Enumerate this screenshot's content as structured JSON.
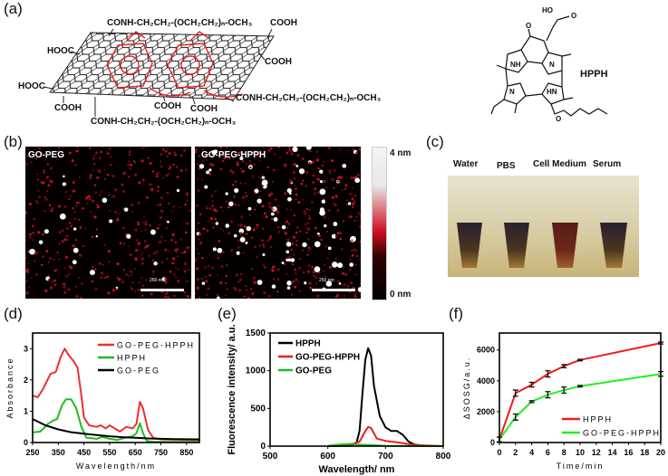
{
  "panel_labels": {
    "a": "(a)",
    "b": "(b)",
    "c": "(c)",
    "d": "(d)",
    "e": "(e)",
    "f": "(f)"
  },
  "panel_a": {
    "peg_chain": "CONH-CH₂CH₂-(OCH₂CH₂)ₙ-OCH₃",
    "cooh": "COOH",
    "hooc": "HOOC",
    "hpph_label": "HPPH",
    "structure_atoms": {
      "ho": "HO",
      "o": "O",
      "nh": "NH",
      "n": "N",
      "hn": "HN"
    }
  },
  "panel_b": {
    "left_title": "GO-PEG",
    "right_title": "GO-PEG-HPPH",
    "scale_bar": "250 nm",
    "colorbar_max": "4 nm",
    "colorbar_min": "0 nm"
  },
  "panel_c": {
    "tubes": [
      "Water",
      "PBS",
      "Cell Medium",
      "Serum"
    ]
  },
  "chart_data": [
    {
      "type": "line",
      "xlabel": "Wavelength/nm",
      "ylabel": "Absorbance",
      "xlim": [
        250,
        900
      ],
      "ylim": [
        0,
        3.5
      ],
      "xticks": [
        250,
        350,
        450,
        550,
        650,
        750,
        850
      ],
      "yticks": [
        0,
        1,
        2,
        3
      ],
      "legend": "top-right",
      "series": [
        {
          "name": "GO-PEG-HPPH",
          "color": "#ee3030",
          "points": [
            [
              250,
              1.5
            ],
            [
              270,
              1.45
            ],
            [
              290,
              1.7
            ],
            [
              320,
              2.2
            ],
            [
              340,
              2.25
            ],
            [
              360,
              2.75
            ],
            [
              375,
              3.0
            ],
            [
              390,
              2.8
            ],
            [
              410,
              2.6
            ],
            [
              425,
              2.4
            ],
            [
              440,
              1.5
            ],
            [
              450,
              0.8
            ],
            [
              470,
              0.55
            ],
            [
              500,
              0.5
            ],
            [
              515,
              0.55
            ],
            [
              535,
              0.45
            ],
            [
              550,
              0.55
            ],
            [
              570,
              0.45
            ],
            [
              590,
              0.35
            ],
            [
              615,
              0.5
            ],
            [
              640,
              0.45
            ],
            [
              655,
              0.6
            ],
            [
              668,
              1.3
            ],
            [
              680,
              1.1
            ],
            [
              700,
              0.4
            ],
            [
              720,
              0.15
            ],
            [
              750,
              0.1
            ],
            [
              900,
              0.08
            ]
          ]
        },
        {
          "name": "HPPH",
          "color": "#22bb22",
          "points": [
            [
              250,
              0.32
            ],
            [
              280,
              0.35
            ],
            [
              310,
              0.6
            ],
            [
              330,
              0.7
            ],
            [
              345,
              0.75
            ],
            [
              365,
              1.2
            ],
            [
              380,
              1.38
            ],
            [
              400,
              1.38
            ],
            [
              420,
              1.1
            ],
            [
              440,
              0.5
            ],
            [
              460,
              0.15
            ],
            [
              500,
              0.12
            ],
            [
              520,
              0.18
            ],
            [
              550,
              0.12
            ],
            [
              580,
              0.08
            ],
            [
              610,
              0.15
            ],
            [
              640,
              0.2
            ],
            [
              655,
              0.3
            ],
            [
              668,
              0.62
            ],
            [
              680,
              0.3
            ],
            [
              695,
              0.05
            ],
            [
              720,
              0.02
            ],
            [
              900,
              0.02
            ]
          ]
        },
        {
          "name": "GO-PEG",
          "color": "#000000",
          "points": [
            [
              250,
              0.75
            ],
            [
              300,
              0.55
            ],
            [
              350,
              0.42
            ],
            [
              400,
              0.33
            ],
            [
              450,
              0.28
            ],
            [
              500,
              0.24
            ],
            [
              550,
              0.2
            ],
            [
              600,
              0.17
            ],
            [
              650,
              0.15
            ],
            [
              700,
              0.13
            ],
            [
              800,
              0.11
            ],
            [
              900,
              0.1
            ]
          ]
        }
      ]
    },
    {
      "type": "line",
      "xlabel": "Wavelength/ nm",
      "ylabel": "Fluorescence intensity/ a.u.",
      "xlim": [
        500,
        800
      ],
      "ylim": [
        0,
        1500
      ],
      "xticks": [
        500,
        600,
        700,
        800
      ],
      "yticks": [
        0,
        500,
        1000,
        1500
      ],
      "legend": "top-left",
      "series": [
        {
          "name": "HPPH",
          "color": "#000000",
          "points": [
            [
              600,
              0
            ],
            [
              640,
              5
            ],
            [
              650,
              50
            ],
            [
              655,
              200
            ],
            [
              660,
              700
            ],
            [
              665,
              1150
            ],
            [
              670,
              1300
            ],
            [
              675,
              1200
            ],
            [
              680,
              800
            ],
            [
              690,
              400
            ],
            [
              700,
              250
            ],
            [
              710,
              200
            ],
            [
              720,
              200
            ],
            [
              730,
              150
            ],
            [
              740,
              60
            ],
            [
              750,
              20
            ],
            [
              770,
              3
            ],
            [
              800,
              0
            ]
          ]
        },
        {
          "name": "GO-PEG-HPPH",
          "color": "#ee1c1c",
          "points": [
            [
              600,
              0
            ],
            [
              640,
              20
            ],
            [
              655,
              60
            ],
            [
              665,
              200
            ],
            [
              670,
              255
            ],
            [
              675,
              240
            ],
            [
              685,
              100
            ],
            [
              700,
              70
            ],
            [
              720,
              50
            ],
            [
              750,
              15
            ],
            [
              800,
              0
            ]
          ]
        },
        {
          "name": "GO-PEG",
          "color": "#22bb22",
          "points": [
            [
              600,
              5
            ],
            [
              620,
              20
            ],
            [
              640,
              30
            ],
            [
              650,
              20
            ],
            [
              700,
              5
            ],
            [
              800,
              0
            ]
          ]
        }
      ]
    },
    {
      "type": "line",
      "xlabel": "Time/min",
      "ylabel": "ΔSOSG/a.u.",
      "xlim": [
        0,
        20
      ],
      "ylim": [
        0,
        7100
      ],
      "xticks": [
        0,
        2,
        4,
        6,
        8,
        10,
        12,
        14,
        16,
        18,
        20
      ],
      "yticks": [
        0,
        2000,
        4000,
        6000
      ],
      "legend": "bottom-right",
      "series": [
        {
          "name": "HPPH",
          "color": "#ee1c1c",
          "points": [
            [
              0,
              200
            ],
            [
              2,
              3200
            ],
            [
              4,
              3750
            ],
            [
              6,
              4450
            ],
            [
              8,
              4950
            ],
            [
              10,
              5350
            ],
            [
              20,
              6450
            ]
          ],
          "errors": [
            150,
            200,
            150,
            200,
            100,
            50,
            60
          ]
        },
        {
          "name": "GO-PEG-HPPH",
          "color": "#22ee22",
          "points": [
            [
              0,
              200
            ],
            [
              2,
              1650
            ],
            [
              4,
              2650
            ],
            [
              6,
              3100
            ],
            [
              8,
              3400
            ],
            [
              10,
              3650
            ],
            [
              20,
              4450
            ]
          ],
          "errors": [
            150,
            200,
            60,
            200,
            200,
            50,
            150
          ]
        }
      ]
    }
  ]
}
